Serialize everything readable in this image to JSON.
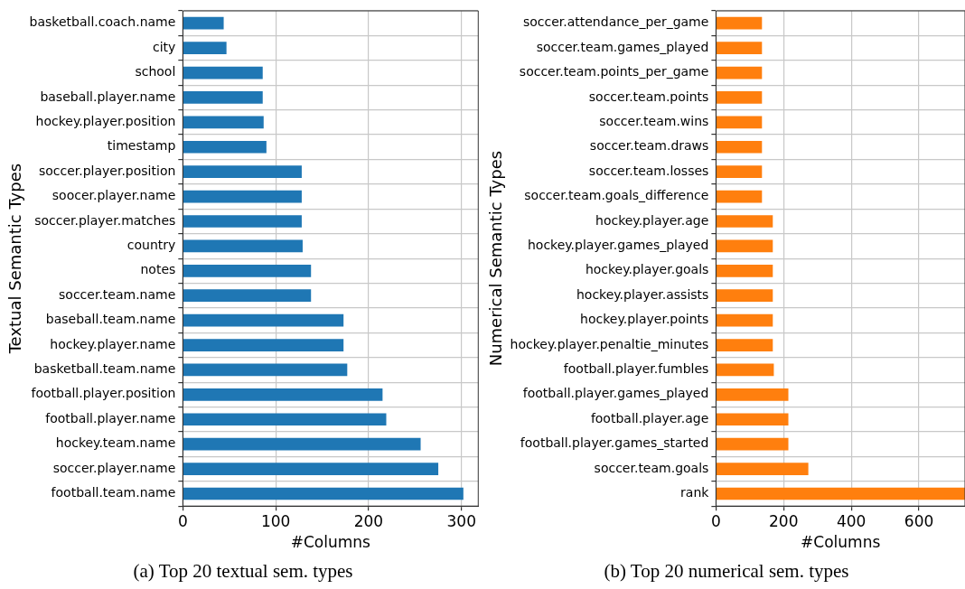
{
  "chart_data": [
    {
      "type": "bar",
      "orientation": "horizontal",
      "title": "(a) Top 20 textual sem. types",
      "xlabel": "#Columns",
      "ylabel": "Textual Semantic Types",
      "categories": [
        "basketball.coach.name",
        "city",
        "school",
        "baseball.player.name",
        "hockey.player.position",
        "timestamp",
        "soccer.player.position",
        "soocer.player.name",
        "soccer.player.matches",
        "country",
        "notes",
        "soccer.team.name",
        "baseball.team.name",
        "hockey.player.name",
        "basketball.team.name",
        "football.player.position",
        "football.player.name",
        "hockey.team.name",
        "soccer.player.name",
        "football.team.name"
      ],
      "values": [
        44,
        47,
        86,
        86,
        87,
        90,
        128,
        128,
        128,
        129,
        138,
        138,
        173,
        173,
        177,
        215,
        219,
        256,
        275,
        302
      ],
      "color": "#1f77b4",
      "xlim": [
        0,
        318
      ],
      "xticks": [
        0,
        100,
        200,
        300
      ],
      "grid": true,
      "legend": false
    },
    {
      "type": "bar",
      "orientation": "horizontal",
      "title": "(b) Top 20 numerical sem. types",
      "xlabel": "#Columns",
      "ylabel": "Numerical Semantic Types",
      "categories": [
        "soccer.attendance_per_game",
        "soccer.team.games_played",
        "soccer.team.points_per_game",
        "soccer.team.points",
        "soccer.team.wins",
        "soccer.team.draws",
        "soccer.team.losses",
        "soccer.team.goals_difference",
        "hockey.player.age",
        "hockey.player.games_played",
        "hockey.player.goals",
        "hockey.player.assists",
        "hockey.player.points",
        "hockey.player.penaltie_minutes",
        "football.player.fumbles",
        "football.player.games_played",
        "football.player.age",
        "football.player.games_started",
        "soccer.team.goals",
        "rank"
      ],
      "values": [
        136,
        136,
        136,
        136,
        136,
        136,
        136,
        136,
        168,
        168,
        168,
        168,
        168,
        168,
        171,
        214,
        214,
        214,
        273,
        736
      ],
      "color": "#ff7f0e",
      "xlim": [
        0,
        736
      ],
      "xticks": [
        0,
        200,
        400,
        600
      ],
      "grid": true,
      "legend": false
    }
  ]
}
